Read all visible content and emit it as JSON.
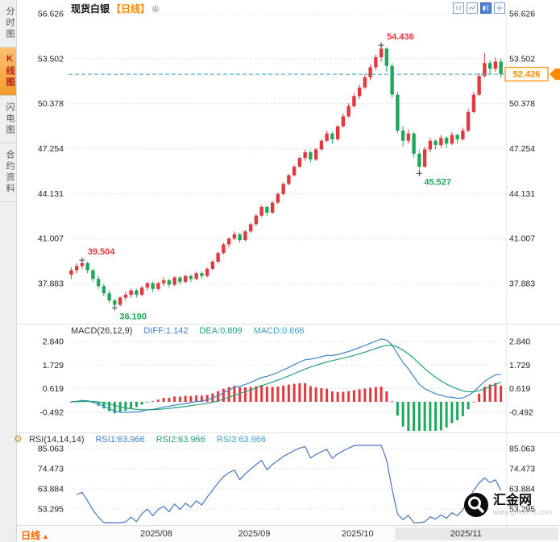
{
  "app": {
    "sidebar": {
      "tabs": [
        {
          "label": "分时图",
          "active": false
        },
        {
          "label": "K线图",
          "active": true
        },
        {
          "label": "闪电图",
          "active": false
        },
        {
          "label": "合约资料",
          "active": false
        }
      ]
    },
    "header": {
      "symbol": "现货白银",
      "period_tag": "【日线】"
    },
    "icons": {
      "gear": "⚙",
      "plus": "⊕",
      "up_arrow": "▲"
    },
    "bottom_bar": {
      "period": "日线"
    },
    "watermark": {
      "name": "汇金网",
      "url": "www.gold678.com"
    }
  },
  "indicators": {
    "macd": {
      "label": "MACD(26,12,9)",
      "diff": "DIFF:1.142",
      "dea": "DEA:0.809",
      "macd": "MACD:0.666"
    },
    "rsi": {
      "label": "RSI(14,14,14)",
      "rsi1": "RSI1:63.966",
      "rsi2": "RSI2:63.966",
      "rsi3": "RSI3:63.966"
    }
  },
  "chart_data": {
    "type": "candlestick",
    "title": "现货白银 日线",
    "panels": [
      "price",
      "MACD",
      "RSI"
    ],
    "y_ticks_main": [
      56.626,
      53.502,
      50.378,
      47.254,
      44.131,
      41.007,
      37.883
    ],
    "y_ticks_macd": [
      2.84,
      1.729,
      0.619,
      -0.492
    ],
    "y_ticks_rsi": [
      85.063,
      74.473,
      63.884,
      53.295
    ],
    "x_ticks": [
      {
        "index": 13,
        "label": "2025/08"
      },
      {
        "index": 31,
        "label": "2025/09"
      },
      {
        "index": 50,
        "label": "2025/10"
      },
      {
        "index": 70,
        "label": "2025/11"
      }
    ],
    "current_price": 52.426,
    "macd_values": {
      "diff": 1.142,
      "dea": 0.809,
      "macd": 0.666
    },
    "rsi_values": {
      "rsi1": 63.966,
      "rsi2": 63.966,
      "rsi3": 63.966
    },
    "annotations": [
      {
        "index": 2,
        "price": 39.504,
        "label": "39.504",
        "type": "high"
      },
      {
        "index": 8,
        "price": 36.19,
        "label": "36.190",
        "type": "low"
      },
      {
        "index": 57,
        "price": 54.436,
        "label": "54.436",
        "type": "high"
      },
      {
        "index": 64,
        "price": 45.527,
        "label": "45.527",
        "type": "low"
      }
    ],
    "colors": {
      "up": "#e2383f",
      "down": "#1fa75c",
      "diff_line": "#3d86c6",
      "dea_line": "#23a17c",
      "rsi_line": "#4576c2",
      "dashed_line": "#3aa7c0",
      "tag": "#ff8a00",
      "grid": "#dedede",
      "axis_text": "#222222",
      "annotation_high": "#e2383f",
      "annotation_low": "#1fa75c"
    },
    "candles": [
      [
        38.5,
        39.0,
        38.2,
        38.8
      ],
      [
        38.8,
        39.3,
        38.6,
        39.1
      ],
      [
        39.1,
        39.504,
        38.9,
        39.3
      ],
      [
        39.3,
        39.4,
        38.6,
        38.8
      ],
      [
        38.8,
        38.9,
        38.0,
        38.2
      ],
      [
        38.2,
        38.4,
        37.5,
        37.7
      ],
      [
        37.7,
        37.9,
        37.0,
        37.2
      ],
      [
        37.2,
        37.4,
        36.5,
        36.7
      ],
      [
        36.7,
        36.8,
        36.19,
        36.4
      ],
      [
        36.4,
        37.0,
        36.3,
        36.9
      ],
      [
        36.9,
        37.3,
        36.7,
        37.1
      ],
      [
        37.1,
        37.5,
        36.9,
        37.4
      ],
      [
        37.4,
        37.5,
        36.9,
        37.1
      ],
      [
        37.1,
        37.7,
        37.0,
        37.6
      ],
      [
        37.6,
        38.0,
        37.4,
        37.9
      ],
      [
        37.9,
        38.0,
        37.3,
        37.5
      ],
      [
        37.5,
        38.0,
        37.4,
        37.9
      ],
      [
        37.9,
        38.3,
        37.7,
        38.1
      ],
      [
        38.1,
        38.2,
        37.6,
        37.8
      ],
      [
        37.8,
        38.4,
        37.7,
        38.3
      ],
      [
        38.3,
        38.4,
        37.8,
        38.0
      ],
      [
        38.0,
        38.5,
        37.9,
        38.4
      ],
      [
        38.4,
        38.5,
        38.0,
        38.2
      ],
      [
        38.2,
        38.7,
        38.1,
        38.6
      ],
      [
        38.6,
        38.7,
        38.2,
        38.4
      ],
      [
        38.4,
        39.0,
        38.3,
        38.9
      ],
      [
        38.9,
        39.5,
        38.8,
        39.4
      ],
      [
        39.4,
        40.1,
        39.3,
        40.0
      ],
      [
        40.0,
        40.7,
        39.9,
        40.6
      ],
      [
        40.6,
        41.1,
        40.4,
        41.0
      ],
      [
        41.0,
        41.5,
        40.9,
        41.3
      ],
      [
        41.3,
        41.4,
        40.7,
        40.9
      ],
      [
        40.9,
        41.6,
        40.8,
        41.5
      ],
      [
        41.5,
        42.1,
        41.4,
        42.0
      ],
      [
        42.0,
        42.7,
        41.9,
        42.6
      ],
      [
        42.6,
        43.3,
        42.5,
        43.2
      ],
      [
        43.2,
        43.3,
        42.6,
        42.8
      ],
      [
        42.8,
        43.6,
        42.7,
        43.5
      ],
      [
        43.5,
        44.2,
        43.4,
        44.1
      ],
      [
        44.1,
        44.9,
        44.0,
        44.8
      ],
      [
        44.8,
        45.5,
        44.7,
        45.4
      ],
      [
        45.4,
        46.1,
        45.3,
        46.0
      ],
      [
        46.0,
        46.7,
        45.9,
        46.6
      ],
      [
        46.6,
        47.2,
        46.4,
        47.0
      ],
      [
        47.0,
        47.1,
        46.3,
        46.5
      ],
      [
        46.5,
        47.3,
        46.4,
        47.2
      ],
      [
        47.2,
        47.9,
        47.1,
        47.8
      ],
      [
        47.8,
        48.5,
        47.7,
        48.3
      ],
      [
        48.3,
        48.4,
        47.6,
        47.9
      ],
      [
        47.9,
        48.9,
        47.8,
        48.8
      ],
      [
        48.8,
        49.7,
        48.7,
        49.5
      ],
      [
        49.5,
        50.4,
        49.4,
        50.2
      ],
      [
        50.2,
        51.1,
        50.1,
        50.9
      ],
      [
        50.9,
        51.7,
        50.7,
        51.5
      ],
      [
        51.5,
        52.4,
        51.4,
        52.2
      ],
      [
        52.2,
        53.1,
        52.0,
        52.9
      ],
      [
        52.9,
        53.8,
        52.7,
        53.6
      ],
      [
        53.6,
        54.436,
        53.3,
        54.2
      ],
      [
        54.2,
        54.3,
        52.6,
        53.0
      ],
      [
        53.0,
        53.2,
        50.8,
        51.0
      ],
      [
        51.0,
        51.2,
        48.3,
        48.5
      ],
      [
        48.5,
        48.8,
        47.4,
        47.8
      ],
      [
        47.8,
        48.6,
        47.6,
        48.3
      ],
      [
        48.3,
        48.4,
        46.6,
        46.9
      ],
      [
        46.9,
        47.1,
        45.527,
        46.0
      ],
      [
        46.0,
        47.4,
        45.9,
        47.2
      ],
      [
        47.2,
        48.0,
        47.0,
        47.8
      ],
      [
        47.8,
        47.9,
        47.2,
        47.5
      ],
      [
        47.5,
        48.2,
        47.3,
        48.0
      ],
      [
        48.0,
        48.1,
        47.3,
        47.6
      ],
      [
        47.6,
        48.4,
        47.5,
        48.2
      ],
      [
        48.2,
        48.3,
        47.6,
        47.9
      ],
      [
        47.9,
        48.7,
        47.8,
        48.5
      ],
      [
        48.5,
        50.0,
        48.4,
        49.8
      ],
      [
        49.8,
        51.2,
        49.7,
        51.0
      ],
      [
        51.0,
        52.5,
        50.9,
        52.3
      ],
      [
        52.3,
        53.9,
        52.2,
        53.2
      ],
      [
        53.2,
        53.4,
        52.4,
        52.8
      ],
      [
        52.8,
        53.6,
        52.6,
        53.3
      ],
      [
        53.3,
        53.5,
        52.2,
        52.426
      ]
    ]
  }
}
